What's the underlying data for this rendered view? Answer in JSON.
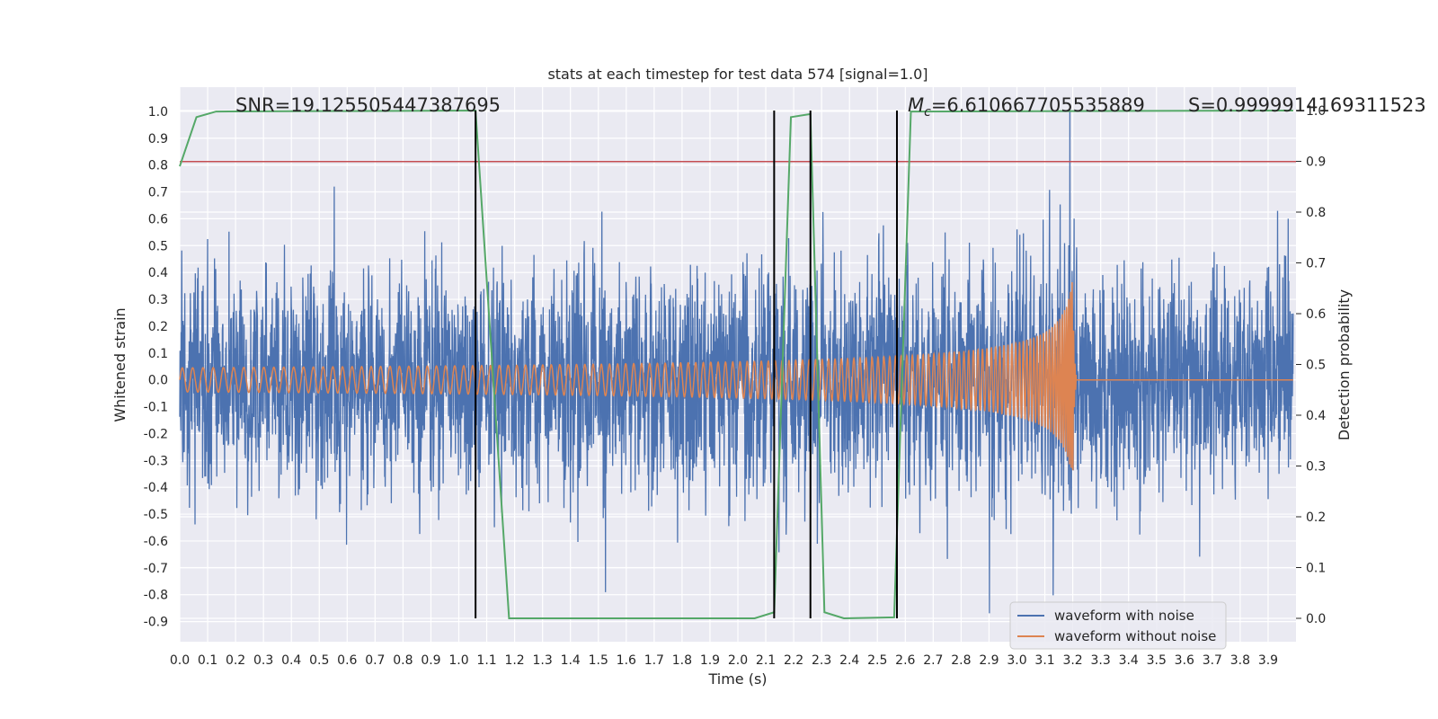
{
  "chart_data": {
    "type": "line",
    "title": "stats at each timestep for test data 574 [signal=1.0]",
    "xlabel": "Time (s)",
    "ylabel": "Whitened strain",
    "y2label": "Detection probability",
    "xlim": [
      0.0,
      4.0
    ],
    "ylim": [
      -0.975,
      1.09
    ],
    "y2lim": [
      -0.046,
      1.046
    ],
    "grid": true,
    "legend_position": "lower-right",
    "x_ticks": [
      "0.0",
      "0.1",
      "0.2",
      "0.3",
      "0.4",
      "0.5",
      "0.6",
      "0.7",
      "0.8",
      "0.9",
      "1.0",
      "1.1",
      "1.2",
      "1.3",
      "1.4",
      "1.5",
      "1.6",
      "1.7",
      "1.8",
      "1.9",
      "2.0",
      "2.1",
      "2.2",
      "2.3",
      "2.4",
      "2.5",
      "2.6",
      "2.7",
      "2.8",
      "2.9",
      "3.0",
      "3.1",
      "3.2",
      "3.3",
      "3.4",
      "3.5",
      "3.6",
      "3.7",
      "3.8",
      "3.9"
    ],
    "y_ticks": [
      "1.0",
      "0.9",
      "0.8",
      "0.7",
      "0.6",
      "0.5",
      "0.4",
      "0.3",
      "0.2",
      "0.1",
      "0.0",
      "-0.1",
      "-0.2",
      "-0.3",
      "-0.4",
      "-0.5",
      "-0.6",
      "-0.7",
      "-0.8",
      "-0.9"
    ],
    "y2_ticks": [
      "1.0",
      "0.9",
      "0.8",
      "0.7",
      "0.6",
      "0.5",
      "0.4",
      "0.3",
      "0.2",
      "0.1",
      "0.0"
    ],
    "annotations": {
      "snr": "SNR=19.125505447387695",
      "mc_symbol": "M",
      "mc_sub": "c",
      "mc_value": "=6.610667705535889",
      "s": "S=0.9999914169311523"
    },
    "series": [
      {
        "name": "waveform with noise",
        "color": "#4c72b0",
        "axis": "left",
        "description_noise_amplitude": 0.2,
        "peak_value": 1.0,
        "peak_time": 3.19,
        "min_value": -0.88
      },
      {
        "name": "waveform without noise",
        "color": "#dd8452",
        "axis": "left",
        "start_amplitude": 0.045,
        "merger_time": 3.2,
        "merger_max": 0.57,
        "merger_min": -0.4
      },
      {
        "color": "#55a868",
        "axis": "right",
        "x": [
          0.0,
          0.06,
          0.13,
          1.06,
          1.18,
          2.06,
          2.13,
          2.19,
          2.26,
          2.31,
          2.38,
          2.56,
          2.62,
          3.99
        ],
        "y": [
          0.89,
          0.987,
          0.998,
          1.0,
          0.0,
          0.0,
          0.012,
          0.987,
          0.993,
          0.012,
          0.0,
          0.002,
          0.998,
          1.0
        ]
      }
    ],
    "threshold_line": {
      "axis": "left",
      "value": 0.813,
      "color": "#c44e52"
    },
    "vlines": {
      "x": [
        1.06,
        2.13,
        2.26,
        2.57
      ],
      "color": "#000000"
    }
  },
  "legend": {
    "noise_label": "waveform with noise",
    "clean_label": "waveform without noise"
  }
}
